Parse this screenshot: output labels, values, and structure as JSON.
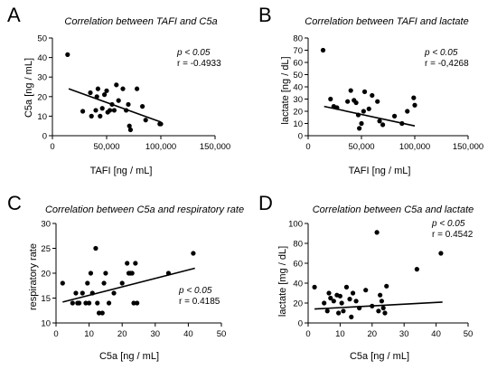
{
  "chart_data": [
    {
      "id": "A",
      "type": "scatter",
      "letter": "A",
      "title": "Correlation between TAFI and C5a",
      "xlabel": "TAFI [ng / mL]",
      "ylabel": "C5a [ng / mL]",
      "xlim": [
        0,
        150000
      ],
      "ylim": [
        0,
        50
      ],
      "xticks": [
        0,
        50000,
        100000,
        150000
      ],
      "xtick_labels": [
        "0",
        "50,000",
        "100,000",
        "150,000"
      ],
      "yticks": [
        0,
        10,
        20,
        30,
        40,
        50
      ],
      "ytick_labels": [
        "0",
        "10",
        "20",
        "30",
        "40",
        "50"
      ],
      "stat_p": "p < 0.05",
      "stat_r": "r = -0.4933",
      "stats_position": "top-right",
      "fit": {
        "x": [
          15000,
          100000
        ],
        "y": [
          24,
          7
        ]
      },
      "points": [
        {
          "x": 14000,
          "y": 41.5
        },
        {
          "x": 28000,
          "y": 12.5
        },
        {
          "x": 35000,
          "y": 22
        },
        {
          "x": 36000,
          "y": 10
        },
        {
          "x": 40000,
          "y": 13
        },
        {
          "x": 41000,
          "y": 20
        },
        {
          "x": 42000,
          "y": 24
        },
        {
          "x": 44000,
          "y": 10
        },
        {
          "x": 46000,
          "y": 14
        },
        {
          "x": 48000,
          "y": 21
        },
        {
          "x": 50000,
          "y": 23
        },
        {
          "x": 51000,
          "y": 12
        },
        {
          "x": 53000,
          "y": 13
        },
        {
          "x": 55000,
          "y": 16
        },
        {
          "x": 57000,
          "y": 13
        },
        {
          "x": 59000,
          "y": 26
        },
        {
          "x": 61000,
          "y": 18
        },
        {
          "x": 65000,
          "y": 24
        },
        {
          "x": 68000,
          "y": 13
        },
        {
          "x": 70000,
          "y": 16
        },
        {
          "x": 71000,
          "y": 5
        },
        {
          "x": 72000,
          "y": 3
        },
        {
          "x": 78000,
          "y": 24
        },
        {
          "x": 83000,
          "y": 15
        },
        {
          "x": 86000,
          "y": 8
        },
        {
          "x": 99000,
          "y": 6
        },
        {
          "x": 100000,
          "y": 6
        }
      ]
    },
    {
      "id": "B",
      "type": "scatter",
      "letter": "B",
      "title": "Correlation between TAFI and lactate",
      "xlabel": "TAFI [ng / mL]",
      "ylabel": "lactate [ng / dL]",
      "xlim": [
        0,
        150000
      ],
      "ylim": [
        0,
        80
      ],
      "xticks": [
        0,
        50000,
        100000,
        150000
      ],
      "xtick_labels": [
        "0",
        "50,000",
        "100,000",
        "150,000"
      ],
      "yticks": [
        0,
        10,
        20,
        30,
        40,
        50,
        60,
        70,
        80
      ],
      "ytick_labels": [
        "0",
        "10",
        "20",
        "30",
        "40",
        "50",
        "60",
        "70",
        "80"
      ],
      "stat_p": "p < 0.05",
      "stat_r": "r = -0,4268",
      "stats_position": "top-right",
      "fit": {
        "x": [
          15000,
          100000
        ],
        "y": [
          24,
          8
        ]
      },
      "points": [
        {
          "x": 14000,
          "y": 70
        },
        {
          "x": 21000,
          "y": 30
        },
        {
          "x": 24000,
          "y": 24
        },
        {
          "x": 27000,
          "y": 23
        },
        {
          "x": 37000,
          "y": 28
        },
        {
          "x": 40000,
          "y": 37
        },
        {
          "x": 43000,
          "y": 29
        },
        {
          "x": 45000,
          "y": 27
        },
        {
          "x": 47000,
          "y": 17
        },
        {
          "x": 48000,
          "y": 6
        },
        {
          "x": 50000,
          "y": 10
        },
        {
          "x": 52000,
          "y": 20
        },
        {
          "x": 53000,
          "y": 36
        },
        {
          "x": 57000,
          "y": 22
        },
        {
          "x": 60000,
          "y": 33
        },
        {
          "x": 65000,
          "y": 28
        },
        {
          "x": 67000,
          "y": 12
        },
        {
          "x": 70000,
          "y": 9
        },
        {
          "x": 81000,
          "y": 16
        },
        {
          "x": 88000,
          "y": 10
        },
        {
          "x": 93000,
          "y": 20
        },
        {
          "x": 99000,
          "y": 31
        },
        {
          "x": 100000,
          "y": 25
        }
      ]
    },
    {
      "id": "C",
      "type": "scatter",
      "letter": "C",
      "title": "Correlation between C5a and respiratory rate",
      "xlabel": "C5a [ng / mL]",
      "ylabel": "respiratory rate",
      "xlim": [
        0,
        50
      ],
      "ylim": [
        10,
        30
      ],
      "xticks": [
        0,
        10,
        20,
        30,
        40,
        50
      ],
      "xtick_labels": [
        "0",
        "10",
        "20",
        "30",
        "40",
        "50"
      ],
      "yticks": [
        10,
        15,
        20,
        25,
        30
      ],
      "ytick_labels": [
        "10",
        "15",
        "20",
        "25",
        "30"
      ],
      "stat_p": "p < 0.05",
      "stat_r": "r = 0.4185",
      "stats_position": "bottom-right",
      "fit": {
        "x": [
          2,
          42
        ],
        "y": [
          14.2,
          21
        ]
      },
      "points": [
        {
          "x": 2,
          "y": 18
        },
        {
          "x": 5,
          "y": 14
        },
        {
          "x": 6,
          "y": 16
        },
        {
          "x": 6.5,
          "y": 14
        },
        {
          "x": 7,
          "y": 14
        },
        {
          "x": 8,
          "y": 16
        },
        {
          "x": 9,
          "y": 14
        },
        {
          "x": 9.5,
          "y": 18
        },
        {
          "x": 10,
          "y": 14
        },
        {
          "x": 10.5,
          "y": 20
        },
        {
          "x": 11,
          "y": 16
        },
        {
          "x": 12,
          "y": 25
        },
        {
          "x": 12.5,
          "y": 14
        },
        {
          "x": 13,
          "y": 12
        },
        {
          "x": 14,
          "y": 12
        },
        {
          "x": 14.5,
          "y": 18
        },
        {
          "x": 15,
          "y": 20
        },
        {
          "x": 16,
          "y": 14
        },
        {
          "x": 17.5,
          "y": 16
        },
        {
          "x": 20,
          "y": 18
        },
        {
          "x": 21.5,
          "y": 22
        },
        {
          "x": 22,
          "y": 20
        },
        {
          "x": 22.5,
          "y": 20
        },
        {
          "x": 23,
          "y": 20
        },
        {
          "x": 23.5,
          "y": 14
        },
        {
          "x": 24,
          "y": 22
        },
        {
          "x": 24.5,
          "y": 14
        },
        {
          "x": 34,
          "y": 20
        },
        {
          "x": 41.5,
          "y": 24
        }
      ]
    },
    {
      "id": "D",
      "type": "scatter",
      "letter": "D",
      "title": "Correlation between C5a and lactate",
      "xlabel": "C5a [ng / mL]",
      "ylabel": "lactate [mg / dL]",
      "xlim": [
        0,
        50
      ],
      "ylim": [
        0,
        100
      ],
      "xticks": [
        0,
        10,
        20,
        30,
        40,
        50
      ],
      "xtick_labels": [
        "0",
        "10",
        "20",
        "30",
        "40",
        "50"
      ],
      "yticks": [
        0,
        20,
        40,
        60,
        80,
        100
      ],
      "ytick_labels": [
        "0",
        "20",
        "40",
        "60",
        "80",
        "100"
      ],
      "stat_p": "p < 0.05",
      "stat_r": "r = 0.4542",
      "stats_position": "top-right",
      "fit": {
        "x": [
          2,
          42
        ],
        "y": [
          14,
          21
        ]
      },
      "points": [
        {
          "x": 2,
          "y": 36
        },
        {
          "x": 5,
          "y": 20
        },
        {
          "x": 6,
          "y": 12
        },
        {
          "x": 6.5,
          "y": 30
        },
        {
          "x": 7,
          "y": 25
        },
        {
          "x": 8,
          "y": 22
        },
        {
          "x": 9,
          "y": 28
        },
        {
          "x": 9.5,
          "y": 10
        },
        {
          "x": 10,
          "y": 27
        },
        {
          "x": 10.5,
          "y": 20
        },
        {
          "x": 11,
          "y": 12
        },
        {
          "x": 12,
          "y": 36
        },
        {
          "x": 13,
          "y": 24
        },
        {
          "x": 13.5,
          "y": 6
        },
        {
          "x": 14,
          "y": 30
        },
        {
          "x": 15,
          "y": 22
        },
        {
          "x": 16,
          "y": 15
        },
        {
          "x": 18,
          "y": 33
        },
        {
          "x": 20,
          "y": 17
        },
        {
          "x": 21.5,
          "y": 91
        },
        {
          "x": 22,
          "y": 12
        },
        {
          "x": 22.5,
          "y": 28
        },
        {
          "x": 23,
          "y": 22
        },
        {
          "x": 23.5,
          "y": 15
        },
        {
          "x": 24,
          "y": 10
        },
        {
          "x": 24.5,
          "y": 37
        },
        {
          "x": 34,
          "y": 54
        },
        {
          "x": 41.5,
          "y": 70
        }
      ]
    }
  ]
}
